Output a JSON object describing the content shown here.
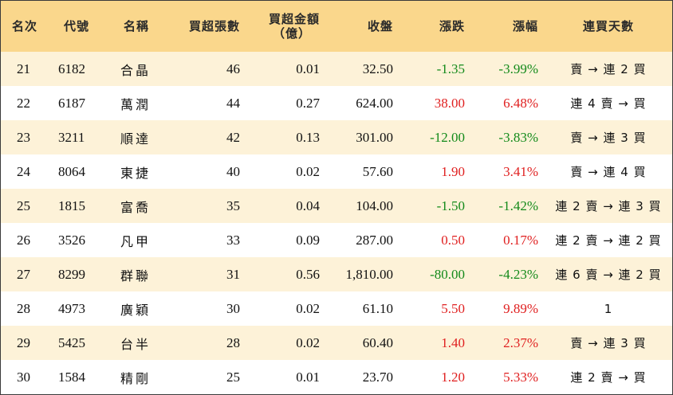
{
  "headers": {
    "rank": "名次",
    "code": "代號",
    "name": "名稱",
    "net_buy_lots": "買超張數",
    "net_buy_amount_line1": "買超金額",
    "net_buy_amount_line2": "（億）",
    "close": "收盤",
    "change": "漲跌",
    "change_pct": "漲幅",
    "streak": "連買天數"
  },
  "colors": {
    "header_bg": "#fad78c",
    "stripe_bg": "#fdf2d8",
    "up": "#e02020",
    "down": "#138a1a"
  },
  "rows": [
    {
      "rank": "21",
      "code": "6182",
      "name": "合晶",
      "lots": "46",
      "amount": "0.01",
      "close": "32.50",
      "change": "-1.35",
      "pct": "-3.99%",
      "streak": "賣 → 連 2 買",
      "dir": "down"
    },
    {
      "rank": "22",
      "code": "6187",
      "name": "萬潤",
      "lots": "44",
      "amount": "0.27",
      "close": "624.00",
      "change": "38.00",
      "pct": "6.48%",
      "streak": "連 4 賣 → 買",
      "dir": "up"
    },
    {
      "rank": "23",
      "code": "3211",
      "name": "順達",
      "lots": "42",
      "amount": "0.13",
      "close": "301.00",
      "change": "-12.00",
      "pct": "-3.83%",
      "streak": "賣 → 連 3 買",
      "dir": "down"
    },
    {
      "rank": "24",
      "code": "8064",
      "name": "東捷",
      "lots": "40",
      "amount": "0.02",
      "close": "57.60",
      "change": "1.90",
      "pct": "3.41%",
      "streak": "賣 → 連 4 買",
      "dir": "up"
    },
    {
      "rank": "25",
      "code": "1815",
      "name": "富喬",
      "lots": "35",
      "amount": "0.04",
      "close": "104.00",
      "change": "-1.50",
      "pct": "-1.42%",
      "streak": "連 2 賣 → 連 3 買",
      "dir": "down"
    },
    {
      "rank": "26",
      "code": "3526",
      "name": "凡甲",
      "lots": "33",
      "amount": "0.09",
      "close": "287.00",
      "change": "0.50",
      "pct": "0.17%",
      "streak": "連 2 賣 → 連 2 買",
      "dir": "up"
    },
    {
      "rank": "27",
      "code": "8299",
      "name": "群聯",
      "lots": "31",
      "amount": "0.56",
      "close": "1,810.00",
      "change": "-80.00",
      "pct": "-4.23%",
      "streak": "連 6 賣 → 連 2 買",
      "dir": "down"
    },
    {
      "rank": "28",
      "code": "4973",
      "name": "廣穎",
      "lots": "30",
      "amount": "0.02",
      "close": "61.10",
      "change": "5.50",
      "pct": "9.89%",
      "streak": "1",
      "dir": "up"
    },
    {
      "rank": "29",
      "code": "5425",
      "name": "台半",
      "lots": "28",
      "amount": "0.02",
      "close": "60.40",
      "change": "1.40",
      "pct": "2.37%",
      "streak": "賣 → 連 3 買",
      "dir": "up"
    },
    {
      "rank": "30",
      "code": "1584",
      "name": "精剛",
      "lots": "25",
      "amount": "0.01",
      "close": "23.70",
      "change": "1.20",
      "pct": "5.33%",
      "streak": "連 2 賣 → 買",
      "dir": "up"
    }
  ]
}
